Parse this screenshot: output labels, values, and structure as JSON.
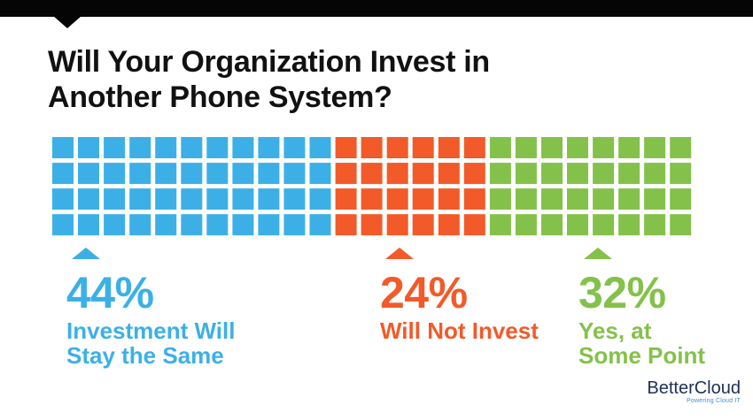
{
  "title": "Will Your Organization Invest in Another Phone System?",
  "colors": {
    "blue": "#3cb0e6",
    "orange": "#f25a29",
    "green": "#84c14a",
    "background": "#ffffff",
    "topbar": "#050505"
  },
  "chart_data": {
    "type": "waffle",
    "title": "Will Your Organization Invest in Another Phone System?",
    "rows": 4,
    "columns": 25,
    "categories": [
      "Investment Will Stay the Same",
      "Will Not Invest",
      "Yes, at Some Point"
    ],
    "values": [
      44,
      24,
      32
    ],
    "unit": "%",
    "colors": [
      "#3cb0e6",
      "#f25a29",
      "#84c14a"
    ]
  },
  "labels": [
    {
      "pct": "44%",
      "lines": [
        "Investment Will",
        "Stay the Same"
      ],
      "color": "#3cb0e6"
    },
    {
      "pct": "24%",
      "lines": [
        "Will Not Invest"
      ],
      "color": "#f25a29"
    },
    {
      "pct": "32%",
      "lines": [
        "Yes, at",
        "Some Point"
      ],
      "color": "#84c14a"
    }
  ],
  "brand": {
    "name": "BetterCloud",
    "tagline": "Powering Cloud IT"
  }
}
